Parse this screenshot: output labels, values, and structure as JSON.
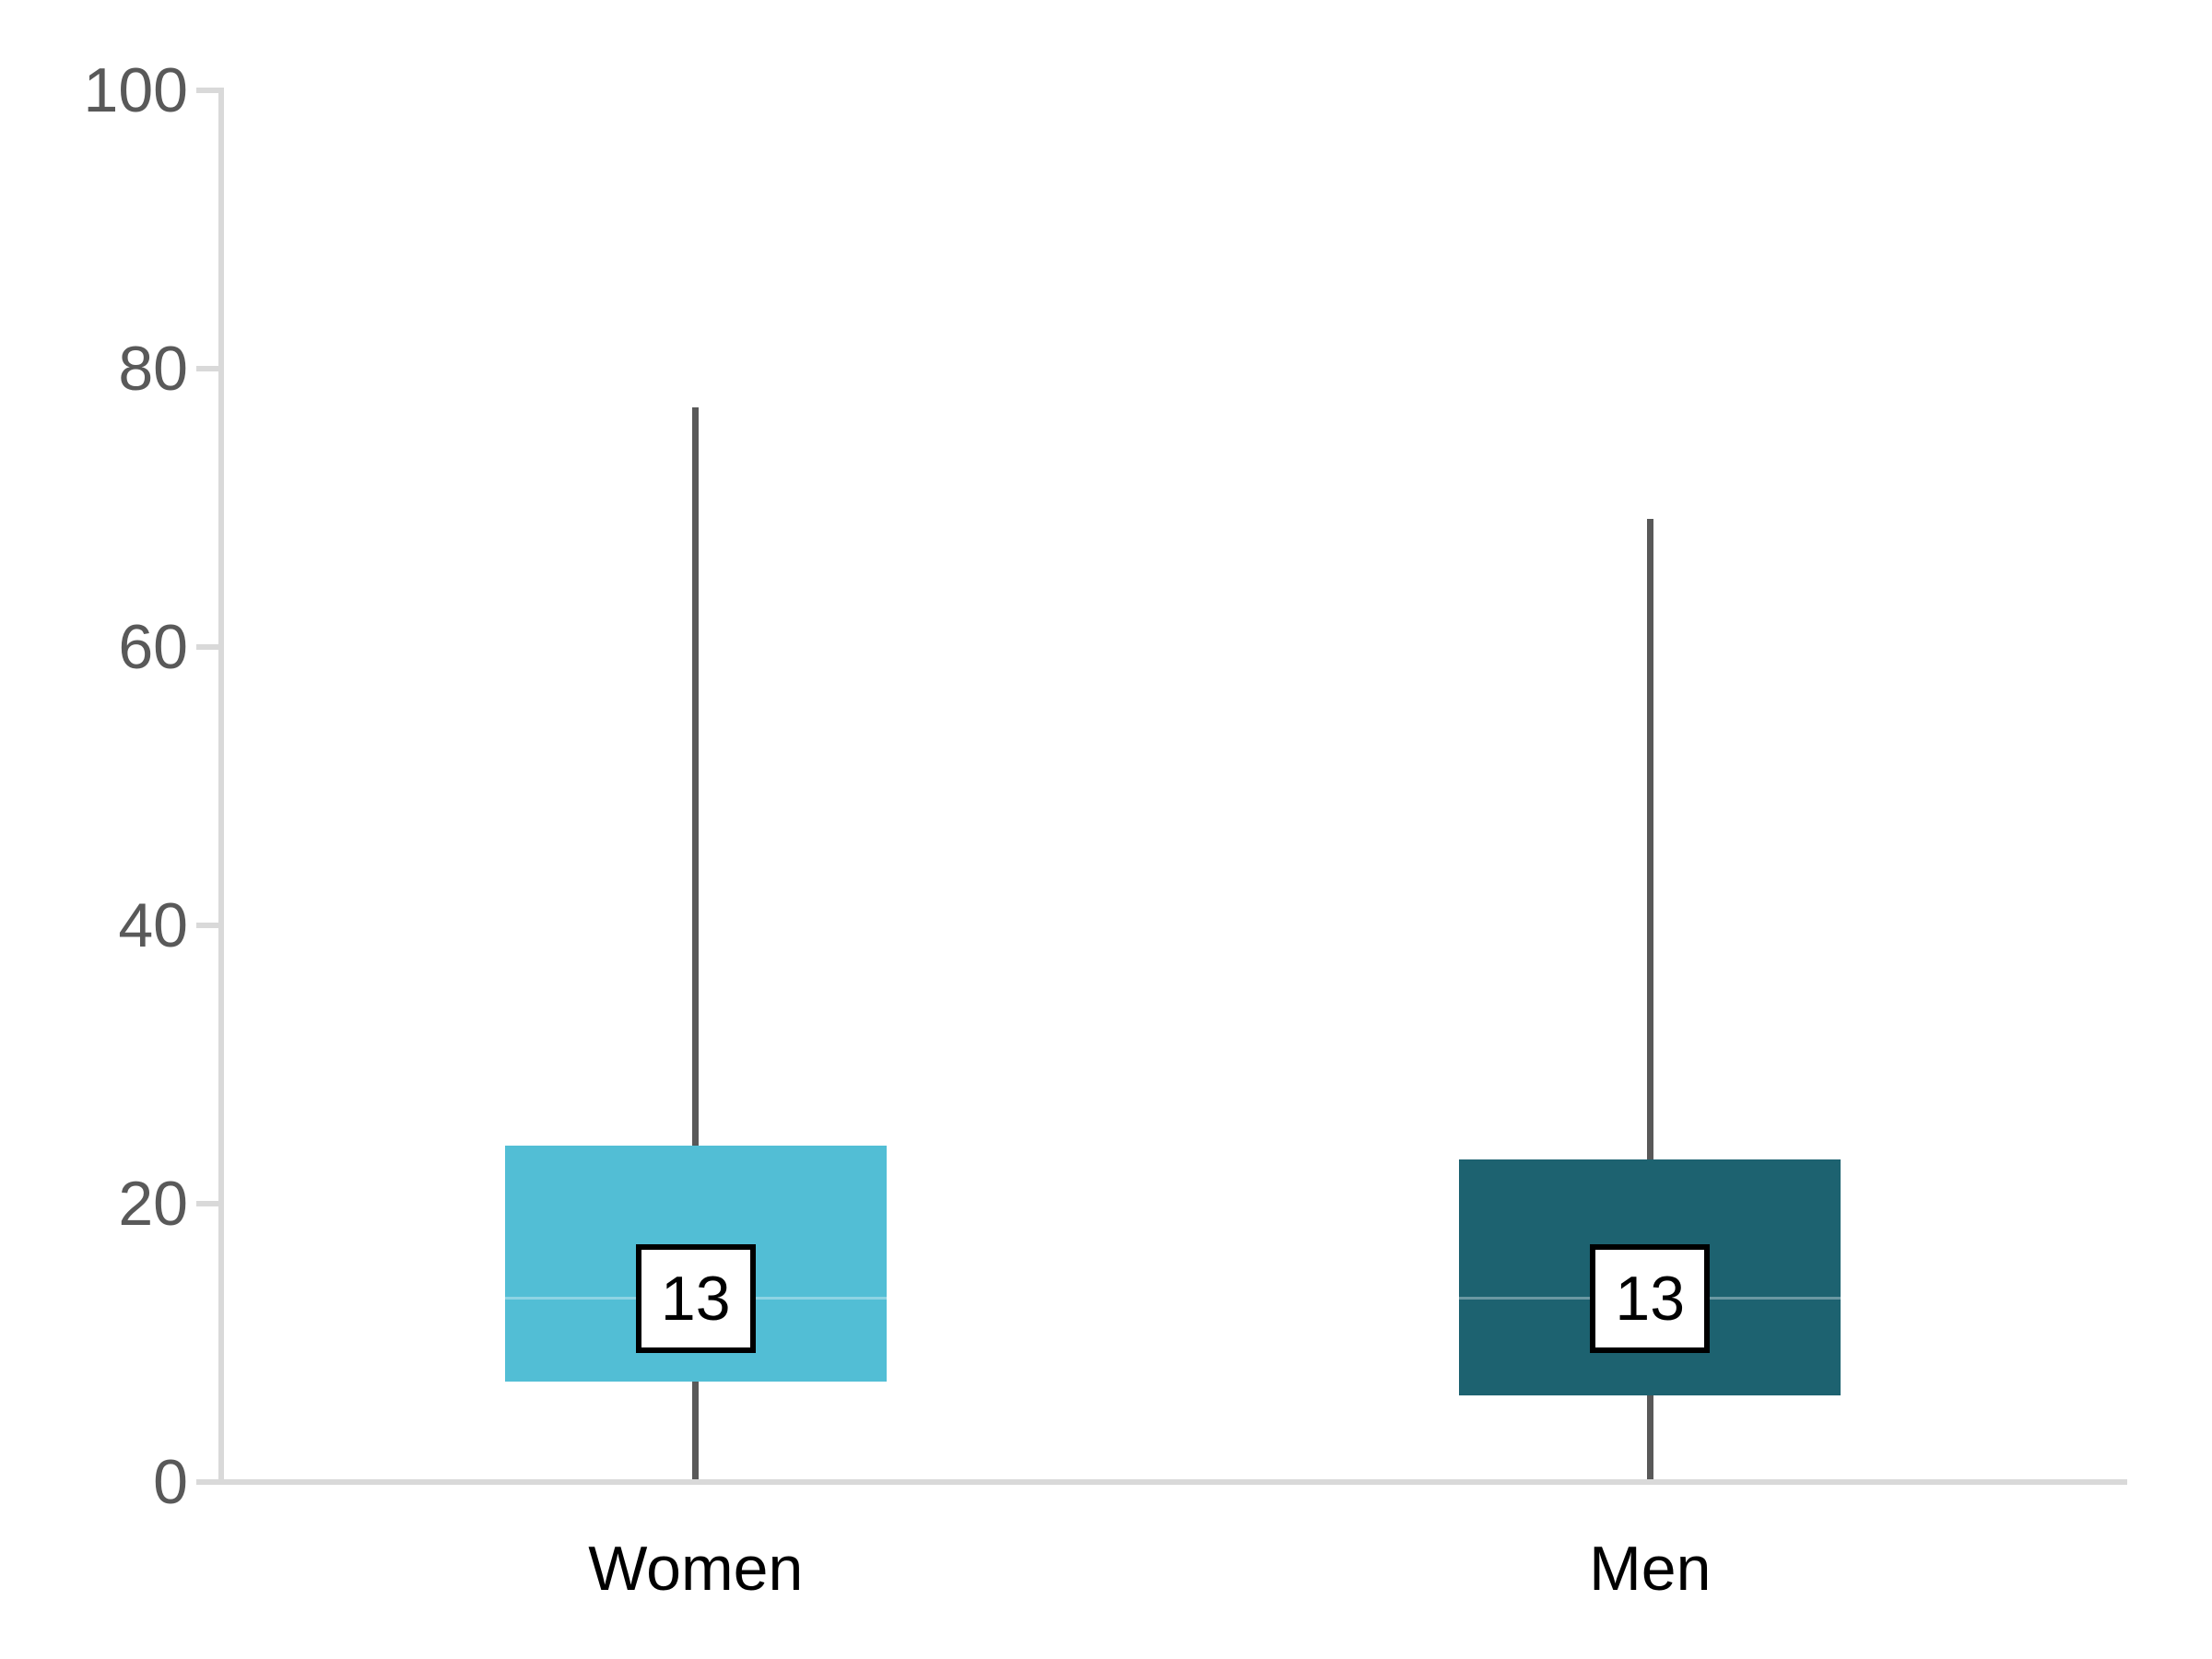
{
  "chart_data": {
    "type": "boxplot",
    "title": "",
    "categories": [
      "Women",
      "Men"
    ],
    "series": [
      {
        "name": "Women",
        "whisker_low": 0,
        "q1": 7,
        "median": 13,
        "q3": 24,
        "whisker_high": 77,
        "median_label": "13",
        "box_color": "#52BED5"
      },
      {
        "name": "Men",
        "whisker_low": 0,
        "q1": 6,
        "median": 13,
        "q3": 23,
        "whisker_high": 69,
        "median_label": "13",
        "box_color": "#1D6270"
      }
    ],
    "y_axis": {
      "range": [
        0,
        100
      ],
      "ticks": [
        0,
        20,
        40,
        60,
        80,
        100
      ],
      "tick_labels": [
        "0",
        "20",
        "40",
        "60",
        "80",
        "100"
      ],
      "grid": false
    },
    "legend": "none",
    "colors": {
      "axis": "#D9D9D9",
      "whisker": "#595959",
      "tick_label_text": "#595959",
      "category_label_text": "#000000",
      "median_tint": "rgba(255,255,255,0.35)",
      "median_box_bg": "#FFFFFF",
      "median_box_border": "#000000"
    }
  }
}
